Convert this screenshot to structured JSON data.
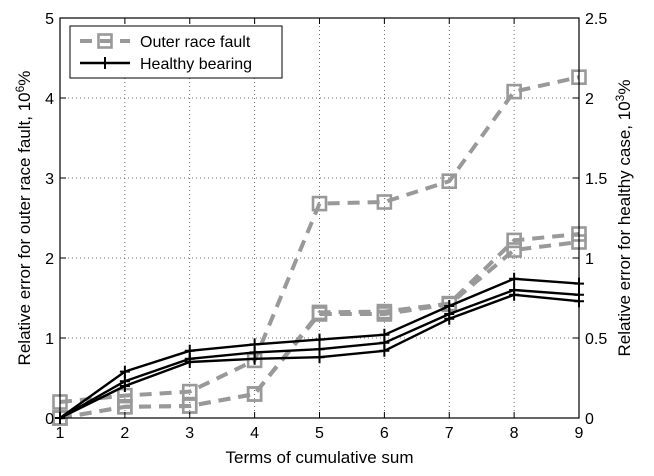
{
  "chart_data": {
    "type": "line",
    "xlabel": "Terms of cumulative sum",
    "ylabel_left": "Relative error for outer race fault, 10",
    "ylabel_left_exp": "6",
    "ylabel_left_suffix": "%",
    "ylabel_right": "Relative error for healthy case, 10",
    "ylabel_right_exp": "3",
    "ylabel_right_suffix": "%",
    "x": [
      1,
      2,
      3,
      4,
      5,
      6,
      7,
      8,
      9
    ],
    "xticks": [
      "1",
      "2",
      "3",
      "4",
      "5",
      "6",
      "7",
      "8",
      "9"
    ],
    "xlim": [
      1,
      9
    ],
    "ylim_left": [
      0,
      5
    ],
    "yticks_left": [
      "0",
      "1",
      "2",
      "3",
      "4",
      "5"
    ],
    "ylim_right": [
      0,
      2.5
    ],
    "yticks_right": [
      "0",
      "0.5",
      "1",
      "1.5",
      "2",
      "2.5"
    ],
    "grid": true,
    "legend_position": "top-left",
    "series": [
      {
        "name": "Outer race fault",
        "axis": "left",
        "style": "dashed-square",
        "color": "#999999",
        "lines": [
          [
            0.2,
            0.28,
            0.33,
            0.72,
            2.68,
            2.7,
            2.96,
            4.08,
            4.26
          ],
          [
            0.0,
            0.14,
            0.15,
            0.3,
            1.32,
            1.33,
            1.43,
            2.22,
            2.3
          ],
          [
            0.0,
            0.14,
            0.15,
            0.3,
            1.3,
            1.3,
            1.42,
            2.1,
            2.2
          ]
        ]
      },
      {
        "name": "Healthy bearing",
        "axis": "right",
        "style": "solid-plus",
        "color": "#000000",
        "lines": [
          [
            0.0,
            0.29,
            0.42,
            0.46,
            0.49,
            0.52,
            0.7,
            0.87,
            0.84
          ],
          [
            0.0,
            0.23,
            0.37,
            0.41,
            0.43,
            0.47,
            0.65,
            0.8,
            0.77
          ],
          [
            0.0,
            0.2,
            0.35,
            0.37,
            0.38,
            0.42,
            0.62,
            0.77,
            0.73
          ]
        ]
      }
    ]
  }
}
